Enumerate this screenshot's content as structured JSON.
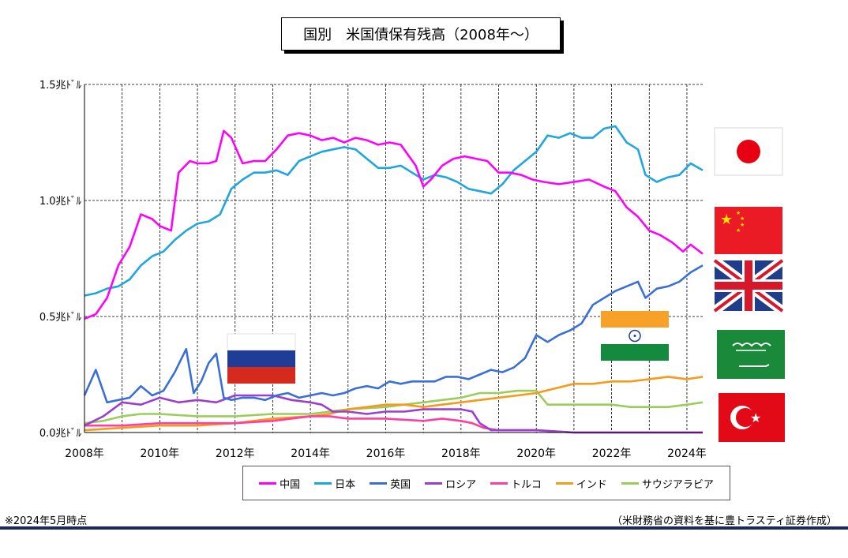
{
  "title": "国別　米国債保有残高（2008年～）",
  "note": "※2024年5月時点",
  "source": "（米財務省の資料を基に豊トラスティ証券作成）",
  "chart_data": {
    "type": "line",
    "title": "国別　米国債保有残高（2008年～）",
    "xlabel": "",
    "ylabel": "",
    "x_tick_labels": [
      "2008年",
      "2010年",
      "2012年",
      "2014年",
      "2016年",
      "2018年",
      "2020年",
      "2022年",
      "2024年"
    ],
    "x_ticks": [
      2008,
      2010,
      2012,
      2014,
      2016,
      2018,
      2020,
      2022,
      2024
    ],
    "xlim": [
      2008,
      2024.42
    ],
    "ylim": [
      0,
      1.5
    ],
    "y_ticks": [
      0,
      0.5,
      1.0,
      1.5
    ],
    "y_tick_labels": [
      "0.0兆ﾄﾞﾙ",
      "0.5兆ﾄﾞﾙ",
      "1.0兆ﾄﾞﾙ",
      "1.5兆ﾄﾞﾙ"
    ],
    "grid": true,
    "legend": "bottom",
    "flags": [
      "日本",
      "中国",
      "英国",
      "インド",
      "ロシア",
      "サウジアラビア",
      "トルコ"
    ],
    "series": [
      {
        "name": "中国",
        "color": "#ff00ff",
        "x": [
          2008,
          2008.3,
          2008.6,
          2008.9,
          2009.2,
          2009.5,
          2009.8,
          2010,
          2010.3,
          2010.5,
          2010.8,
          2011,
          2011.3,
          2011.5,
          2011.7,
          2011.9,
          2012.2,
          2012.5,
          2012.8,
          2013.1,
          2013.4,
          2013.7,
          2014,
          2014.3,
          2014.6,
          2014.9,
          2015.2,
          2015.5,
          2015.8,
          2016.1,
          2016.4,
          2016.8,
          2017,
          2017.2,
          2017.5,
          2017.8,
          2018.1,
          2018.4,
          2018.7,
          2019,
          2019.3,
          2019.6,
          2019.9,
          2020.2,
          2020.6,
          2021,
          2021.4,
          2021.8,
          2022.1,
          2022.4,
          2022.7,
          2023,
          2023.3,
          2023.6,
          2023.9,
          2024.1,
          2024.42
        ],
        "values": [
          0.49,
          0.51,
          0.58,
          0.72,
          0.8,
          0.94,
          0.92,
          0.89,
          0.87,
          1.12,
          1.17,
          1.16,
          1.16,
          1.17,
          1.3,
          1.27,
          1.16,
          1.17,
          1.17,
          1.22,
          1.28,
          1.29,
          1.28,
          1.26,
          1.27,
          1.25,
          1.27,
          1.26,
          1.24,
          1.25,
          1.24,
          1.15,
          1.06,
          1.09,
          1.15,
          1.18,
          1.19,
          1.18,
          1.17,
          1.12,
          1.12,
          1.11,
          1.09,
          1.08,
          1.07,
          1.08,
          1.09,
          1.06,
          1.04,
          0.97,
          0.93,
          0.87,
          0.85,
          0.82,
          0.78,
          0.81,
          0.77
        ]
      },
      {
        "name": "日本",
        "color": "#1fa6de",
        "x": [
          2008,
          2008.3,
          2008.6,
          2008.9,
          2009.2,
          2009.5,
          2009.8,
          2010.1,
          2010.4,
          2010.7,
          2011,
          2011.3,
          2011.6,
          2011.9,
          2012.2,
          2012.5,
          2012.8,
          2013.1,
          2013.4,
          2013.7,
          2014,
          2014.3,
          2014.6,
          2014.9,
          2015.2,
          2015.5,
          2015.8,
          2016.1,
          2016.4,
          2016.7,
          2017,
          2017.3,
          2017.6,
          2017.9,
          2018.2,
          2018.5,
          2018.8,
          2019.1,
          2019.4,
          2019.7,
          2020,
          2020.3,
          2020.6,
          2020.9,
          2021.2,
          2021.5,
          2021.8,
          2022.1,
          2022.4,
          2022.7,
          2022.9,
          2023.2,
          2023.5,
          2023.8,
          2024.1,
          2024.42
        ],
        "values": [
          0.59,
          0.6,
          0.62,
          0.63,
          0.66,
          0.72,
          0.76,
          0.78,
          0.83,
          0.87,
          0.9,
          0.91,
          0.94,
          1.05,
          1.09,
          1.12,
          1.12,
          1.13,
          1.11,
          1.17,
          1.19,
          1.21,
          1.22,
          1.23,
          1.22,
          1.18,
          1.14,
          1.14,
          1.15,
          1.12,
          1.09,
          1.11,
          1.1,
          1.08,
          1.05,
          1.04,
          1.03,
          1.07,
          1.13,
          1.17,
          1.21,
          1.28,
          1.27,
          1.29,
          1.27,
          1.27,
          1.31,
          1.32,
          1.25,
          1.22,
          1.11,
          1.08,
          1.1,
          1.11,
          1.16,
          1.13
        ]
      },
      {
        "name": "英国",
        "color": "#3a6fd8",
        "x": [
          2008,
          2008.3,
          2008.6,
          2008.9,
          2009.2,
          2009.5,
          2009.8,
          2010.1,
          2010.4,
          2010.7,
          2010.9,
          2011.1,
          2011.3,
          2011.5,
          2011.7,
          2011.9,
          2012.2,
          2012.5,
          2012.8,
          2013.1,
          2013.4,
          2013.7,
          2014,
          2014.3,
          2014.6,
          2014.9,
          2015.2,
          2015.5,
          2015.8,
          2016.1,
          2016.4,
          2016.7,
          2017,
          2017.3,
          2017.6,
          2017.9,
          2018.2,
          2018.5,
          2018.8,
          2019.1,
          2019.4,
          2019.7,
          2020,
          2020.3,
          2020.6,
          2020.9,
          2021.2,
          2021.5,
          2021.8,
          2022.1,
          2022.4,
          2022.7,
          2022.9,
          2023.2,
          2023.5,
          2023.8,
          2024.1,
          2024.42
        ],
        "values": [
          0.16,
          0.27,
          0.13,
          0.14,
          0.15,
          0.2,
          0.16,
          0.18,
          0.26,
          0.36,
          0.17,
          0.22,
          0.3,
          0.34,
          0.15,
          0.14,
          0.15,
          0.15,
          0.14,
          0.16,
          0.17,
          0.15,
          0.16,
          0.17,
          0.16,
          0.17,
          0.19,
          0.2,
          0.19,
          0.22,
          0.21,
          0.22,
          0.22,
          0.22,
          0.24,
          0.24,
          0.23,
          0.25,
          0.27,
          0.26,
          0.28,
          0.32,
          0.42,
          0.39,
          0.42,
          0.44,
          0.47,
          0.55,
          0.58,
          0.61,
          0.63,
          0.65,
          0.58,
          0.62,
          0.63,
          0.65,
          0.69,
          0.72
        ]
      },
      {
        "name": "ロシア",
        "color": "#9a3fd0",
        "x": [
          2008,
          2008.5,
          2009,
          2009.5,
          2010,
          2010.5,
          2011,
          2011.5,
          2012,
          2012.5,
          2013,
          2013.5,
          2014,
          2014.3,
          2014.6,
          2015,
          2015.5,
          2016,
          2016.5,
          2017,
          2017.5,
          2018,
          2018.3,
          2018.5,
          2018.8,
          2019.5,
          2020,
          2021,
          2022,
          2023,
          2024,
          2024.42
        ],
        "values": [
          0.03,
          0.07,
          0.13,
          0.12,
          0.15,
          0.13,
          0.14,
          0.13,
          0.16,
          0.16,
          0.16,
          0.14,
          0.13,
          0.12,
          0.09,
          0.09,
          0.08,
          0.09,
          0.09,
          0.1,
          0.1,
          0.1,
          0.09,
          0.04,
          0.01,
          0.01,
          0.01,
          0.0,
          0.0,
          0.0,
          0.0,
          0.0
        ]
      },
      {
        "name": "トルコ",
        "color": "#ff3fa0",
        "x": [
          2008,
          2009,
          2010,
          2011,
          2012,
          2013,
          2014,
          2014.5,
          2015,
          2016,
          2017,
          2017.5,
          2018,
          2018.3,
          2018.6,
          2019,
          2020,
          2021,
          2022,
          2023,
          2024,
          2024.42
        ],
        "values": [
          0.03,
          0.03,
          0.04,
          0.04,
          0.04,
          0.05,
          0.07,
          0.07,
          0.06,
          0.06,
          0.05,
          0.06,
          0.05,
          0.04,
          0.02,
          0.01,
          0.01,
          0.0,
          0.0,
          0.0,
          0.0,
          0.0
        ]
      },
      {
        "name": "インド",
        "color": "#f59a1a",
        "x": [
          2008,
          2009,
          2010,
          2011,
          2012,
          2013,
          2014,
          2014.5,
          2015,
          2015.5,
          2016,
          2016.5,
          2017,
          2017.5,
          2018,
          2018.5,
          2019,
          2019.5,
          2020,
          2020.5,
          2021,
          2021.5,
          2022,
          2022.5,
          2023,
          2023.5,
          2024,
          2024.42
        ],
        "values": [
          0.01,
          0.02,
          0.03,
          0.03,
          0.04,
          0.06,
          0.07,
          0.08,
          0.1,
          0.11,
          0.12,
          0.12,
          0.11,
          0.12,
          0.13,
          0.14,
          0.15,
          0.16,
          0.17,
          0.19,
          0.21,
          0.21,
          0.22,
          0.22,
          0.23,
          0.24,
          0.23,
          0.24
        ]
      },
      {
        "name": "サウジアラビア",
        "color": "#9acd5a",
        "x": [
          2008,
          2008.5,
          2009,
          2009.5,
          2010,
          2011,
          2012,
          2013,
          2014,
          2015,
          2016,
          2016.5,
          2017,
          2017.5,
          2018,
          2018.5,
          2019,
          2019.5,
          2020,
          2020.3,
          2020.6,
          2021,
          2021.5,
          2022,
          2022.5,
          2023,
          2023.5,
          2024,
          2024.42
        ],
        "values": [
          0.04,
          0.05,
          0.07,
          0.08,
          0.08,
          0.07,
          0.07,
          0.08,
          0.08,
          0.1,
          0.11,
          0.12,
          0.13,
          0.14,
          0.15,
          0.17,
          0.17,
          0.18,
          0.18,
          0.12,
          0.12,
          0.12,
          0.12,
          0.12,
          0.11,
          0.11,
          0.11,
          0.12,
          0.13
        ]
      }
    ]
  }
}
